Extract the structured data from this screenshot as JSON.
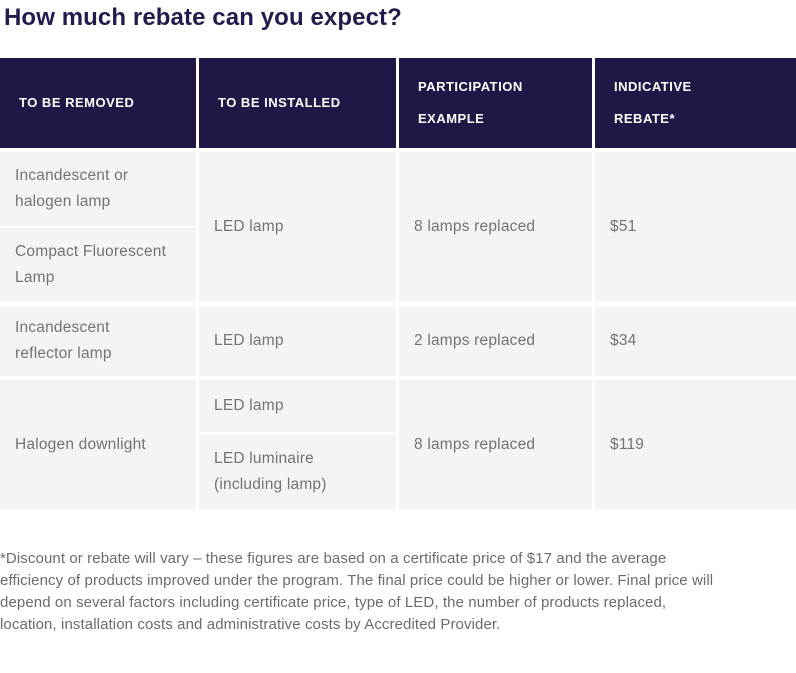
{
  "page": {
    "title": "How much rebate can you expect?"
  },
  "table": {
    "headers": [
      {
        "lines": [
          "TO BE REMOVED",
          ""
        ]
      },
      {
        "lines": [
          "TO BE INSTALLED",
          ""
        ]
      },
      {
        "lines": [
          "PARTICIPATION",
          "EXAMPLE"
        ]
      },
      {
        "lines": [
          "INDICATIVE",
          "REBATE*"
        ]
      }
    ],
    "groups": [
      {
        "removed": [
          "Incandescent or halogen lamp",
          "Compact Fluorescent Lamp"
        ],
        "installed": [
          "LED lamp"
        ],
        "example": "8 lamps replaced",
        "rebate": "$51"
      },
      {
        "removed": [
          "Incandescent reflector lamp"
        ],
        "installed": [
          "LED lamp"
        ],
        "example": "2 lamps replaced",
        "rebate": "$34"
      },
      {
        "removed": [
          "Halogen downlight"
        ],
        "installed": [
          "LED lamp",
          "LED luminaire (including lamp)"
        ],
        "example": "8 lamps replaced",
        "rebate": "$119"
      }
    ]
  },
  "footnote": {
    "lines": [
      "*Discount or rebate will vary – these figures are based on a certificate price of $17 and the average",
      "efficiency of products improved under the program. The final price could be higher or lower. Final price will",
      "depend on several factors including certificate price, type of LED, the number of products replaced,",
      "location, installation costs and administrative costs by Accredited Provider."
    ]
  },
  "colors": {
    "header_bg": "#201747",
    "title_text": "#221c4e",
    "cell_bg": "#f4f4f4",
    "cell_text": "#737373",
    "footnote_text": "#6b6b6b"
  }
}
